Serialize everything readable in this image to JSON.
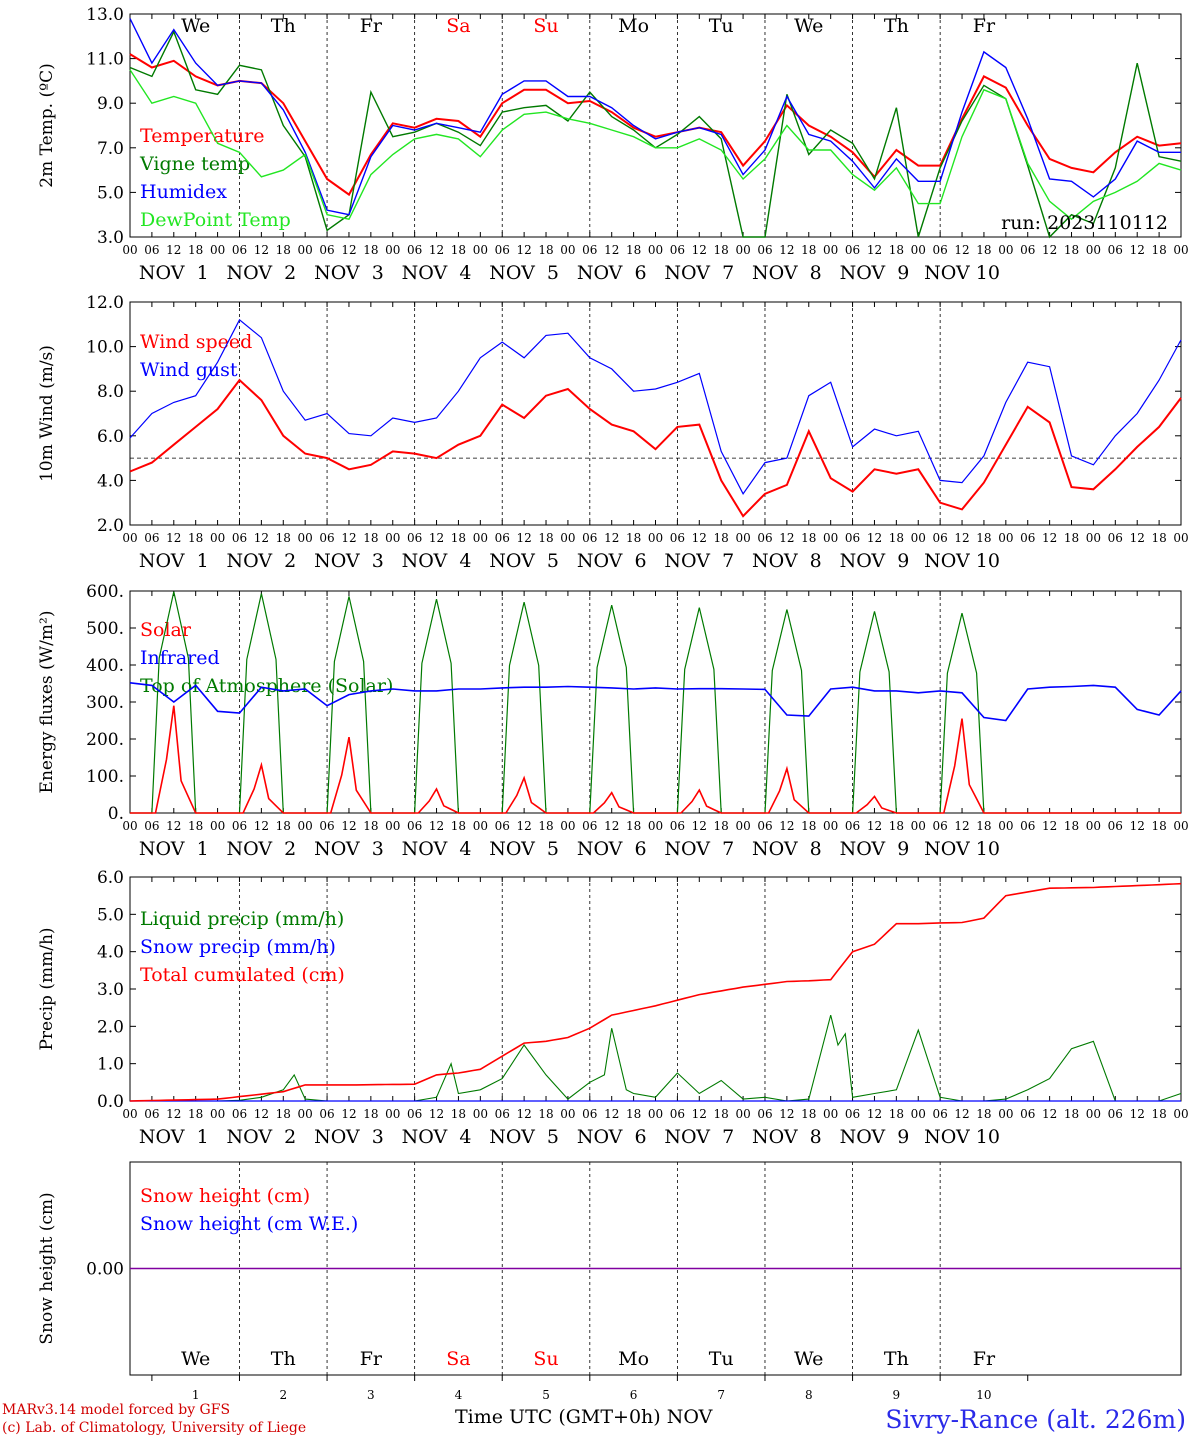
{
  "run_label": "run: 2023110112",
  "footer": {
    "model_line": "MARv3.14 model forced by GFS",
    "lab_line": "(c) Lab. of Climatology, University of Liege",
    "x_title": "Time UTC (GMT+0h) NOV",
    "station": "Sivry-Rance (alt. 226m)"
  },
  "day_names": [
    "We",
    "Th",
    "Fr",
    "Sa",
    "Su",
    "Mo",
    "Tu",
    "We",
    "Th",
    "Fr"
  ],
  "weekend_days": [
    "Sa",
    "Su"
  ],
  "day_dates": [
    "NOV  1",
    "NOV  2",
    "NOV  3",
    "NOV  4",
    "NOV  5",
    "NOV  6",
    "NOV  7",
    "NOV  8",
    "NOV  9",
    "NOV 10"
  ],
  "day_numbers": [
    "1",
    "2",
    "3",
    "4",
    "5",
    "6",
    "7",
    "8",
    "9",
    "10"
  ],
  "hour_ticks": [
    "00",
    "06",
    "12",
    "18"
  ],
  "colors": {
    "red": "#ff0000",
    "green": "#007a00",
    "blue": "#0000ff",
    "lightgreen": "#22e622",
    "purple": "#8000a0"
  },
  "chart_data": [
    {
      "type": "line",
      "ylabel": "2m Temp. (ºC)",
      "ylim": [
        3,
        13
      ],
      "yticks": [
        3,
        5,
        7,
        9,
        11,
        13
      ],
      "tick_labels": [
        "3.0",
        "5.0",
        "7.0",
        "9.0",
        "11.0",
        "13.0"
      ],
      "x": [
        0,
        6,
        12,
        18,
        24,
        30,
        36,
        42,
        48,
        54,
        60,
        66,
        72,
        78,
        84,
        90,
        96,
        102,
        108,
        114,
        120,
        126,
        132,
        138,
        144,
        150,
        156,
        162,
        168,
        174,
        180,
        186,
        192,
        198,
        204,
        210,
        216,
        222,
        228,
        234,
        240
      ],
      "series": [
        {
          "name": "Temperature",
          "color": "red",
          "values": [
            11.2,
            10.6,
            10.9,
            10.2,
            9.8,
            10.0,
            9.9,
            9.0,
            7.3,
            5.6,
            4.9,
            6.7,
            8.1,
            7.9,
            8.3,
            8.2,
            7.5,
            9.0,
            9.6,
            9.6,
            9.0,
            9.1,
            8.6,
            7.9,
            7.5,
            7.7,
            7.9,
            7.7,
            6.2,
            7.3,
            8.9,
            8.0,
            7.5,
            6.8,
            5.7,
            6.9,
            6.2,
            6.2,
            8.3,
            10.2,
            9.7
          ]
        },
        {
          "name": "Vigne temp",
          "color": "green",
          "values": [
            10.6,
            10.2,
            12.2,
            9.6,
            9.4,
            10.7,
            10.5,
            8.0,
            6.6,
            3.3,
            4.0,
            9.5,
            7.5,
            7.7,
            8.1,
            7.7,
            7.1,
            8.6,
            8.8,
            8.9,
            8.2,
            9.5,
            8.4,
            7.8,
            7.0,
            7.6,
            8.4,
            7.4,
            2.9,
            2.9,
            9.4,
            6.7,
            7.8,
            7.2,
            5.6,
            8.8,
            2.9,
            6.1,
            8.2,
            9.8,
            9.2
          ]
        },
        {
          "name": "Humidex",
          "color": "blue",
          "values": [
            12.8,
            10.8,
            12.3,
            10.8,
            9.8,
            10.0,
            9.9,
            8.7,
            6.8,
            4.2,
            4.0,
            6.6,
            8.0,
            7.8,
            8.1,
            7.9,
            7.7,
            9.4,
            10.0,
            10.0,
            9.3,
            9.3,
            8.8,
            8.0,
            7.4,
            7.7,
            7.9,
            7.6,
            5.8,
            6.9,
            9.3,
            7.6,
            7.3,
            6.4,
            5.2,
            6.5,
            5.5,
            5.5,
            8.6,
            11.3,
            10.6
          ]
        },
        {
          "name": "DewPoint Temp",
          "color": "lightgreen",
          "values": [
            10.5,
            9.0,
            9.3,
            9.0,
            7.2,
            6.8,
            5.7,
            6.0,
            6.7,
            4.0,
            3.8,
            5.8,
            6.7,
            7.4,
            7.6,
            7.4,
            6.6,
            7.8,
            8.5,
            8.6,
            8.3,
            8.1,
            7.8,
            7.5,
            7.0,
            7.0,
            7.4,
            6.9,
            5.6,
            6.5,
            8.0,
            6.9,
            6.9,
            5.8,
            5.1,
            6.1,
            4.5,
            4.5,
            7.5,
            9.6,
            9.2
          ]
        }
      ],
      "series_extra": {
        "x": [
          240,
          246,
          252,
          258,
          264,
          270,
          276,
          282,
          288
        ],
        "Temperature": [
          9.7,
          8.0,
          6.5,
          6.1,
          5.9,
          6.8,
          7.5,
          7.1,
          7.2
        ],
        "Vigne temp": [
          9.2,
          6.2,
          3.0,
          4.0,
          3.6,
          6.1,
          10.8,
          6.6,
          6.4
        ],
        "Humidex": [
          10.6,
          8.3,
          5.6,
          5.5,
          4.8,
          5.6,
          7.3,
          6.8,
          6.8
        ],
        "DewPoint Temp": [
          9.2,
          6.3,
          4.6,
          3.8,
          4.6,
          5.0,
          5.5,
          6.3,
          6.0
        ]
      }
    },
    {
      "type": "line",
      "ylabel": "10m Wind (m/s)",
      "ylim": [
        2,
        12
      ],
      "yticks": [
        2,
        4,
        6,
        8,
        10,
        12
      ],
      "tick_labels": [
        "2.0",
        "4.0",
        "6.0",
        "8.0",
        "10.0",
        "12.0"
      ],
      "reference_line": 5,
      "x": [
        0,
        6,
        12,
        18,
        24,
        30,
        36,
        42,
        48,
        54,
        60,
        66,
        72,
        78,
        84,
        90,
        96,
        102,
        108,
        114,
        120,
        126,
        132,
        138,
        144,
        150,
        156,
        162,
        168,
        174,
        180,
        186,
        192,
        198,
        204,
        210,
        216,
        222,
        228,
        234,
        240,
        246,
        252,
        258,
        264,
        270,
        276,
        282,
        288
      ],
      "series": [
        {
          "name": "Wind speed",
          "color": "red",
          "values": [
            4.4,
            4.8,
            5.6,
            6.4,
            7.2,
            8.5,
            7.6,
            6.0,
            5.2,
            5.0,
            4.5,
            4.7,
            5.3,
            5.2,
            5.0,
            5.6,
            6.0,
            7.4,
            6.8,
            7.8,
            8.1,
            7.2,
            6.5,
            6.2,
            5.4,
            6.4,
            6.5,
            4.0,
            2.4,
            3.4,
            3.8,
            6.2,
            4.1,
            3.5,
            4.5,
            4.3,
            4.5,
            3.0,
            2.7,
            3.9,
            5.6,
            7.3,
            6.6,
            3.7,
            3.6,
            4.5,
            5.5,
            6.4,
            7.7
          ]
        },
        {
          "name": "Wind gust",
          "color": "blue",
          "values": [
            5.9,
            7.0,
            7.5,
            7.8,
            9.3,
            11.2,
            10.4,
            8.0,
            6.7,
            7.0,
            6.1,
            6.0,
            6.8,
            6.6,
            6.8,
            8.0,
            9.5,
            10.2,
            9.5,
            10.5,
            10.6,
            9.5,
            9.0,
            8.0,
            8.1,
            8.4,
            8.8,
            5.3,
            3.4,
            4.8,
            5.0,
            7.8,
            8.4,
            5.5,
            6.3,
            6.0,
            6.2,
            4.0,
            3.9,
            5.1,
            7.5,
            9.3,
            9.1,
            5.1,
            4.7,
            6.0,
            7.0,
            8.5,
            10.3
          ]
        }
      ]
    },
    {
      "type": "line",
      "ylabel": "Energy fluxes (W/m²)",
      "ylim": [
        0,
        600
      ],
      "yticks": [
        0,
        100,
        200,
        300,
        400,
        500,
        600
      ],
      "tick_labels": [
        "0.",
        "100.",
        "200.",
        "300.",
        "400.",
        "500.",
        "600."
      ],
      "series": [
        {
          "name": "Solar",
          "color": "red",
          "daily_peaks": [
            290,
            130,
            205,
            65,
            95,
            55,
            62,
            120,
            45,
            255
          ]
        },
        {
          "name": "Infrared",
          "color": "blue",
          "x": [
            0,
            6,
            12,
            18,
            24,
            30,
            36,
            42,
            48,
            54,
            60,
            66,
            72,
            78,
            84,
            90,
            96,
            102,
            108,
            114,
            120,
            126,
            132,
            138,
            144,
            150,
            156,
            162,
            168,
            174,
            180,
            186,
            192,
            198,
            204,
            210,
            216,
            222,
            228,
            234,
            240,
            246,
            252,
            258,
            264,
            270,
            276,
            282,
            288
          ],
          "values": [
            352,
            345,
            300,
            345,
            275,
            270,
            340,
            330,
            335,
            290,
            320,
            330,
            335,
            330,
            330,
            335,
            335,
            338,
            340,
            340,
            342,
            340,
            338,
            335,
            338,
            335,
            336,
            336,
            335,
            334,
            265,
            262,
            335,
            340,
            330,
            330,
            325,
            330,
            325,
            258,
            250,
            335,
            340,
            342,
            345,
            340,
            280,
            265,
            330
          ]
        },
        {
          "name": "Top of Atmosphere (Solar)",
          "color": "green",
          "daily_peaks": [
            598,
            593,
            585,
            578,
            570,
            562,
            555,
            550,
            545,
            540
          ]
        }
      ]
    },
    {
      "type": "line",
      "ylabel": "Precip (mm/h)",
      "ylim": [
        0,
        6
      ],
      "yticks": [
        0,
        1,
        2,
        3,
        4,
        5,
        6
      ],
      "tick_labels": [
        "0.0",
        "1.0",
        "2.0",
        "3.0",
        "4.0",
        "5.0",
        "6.0"
      ],
      "series": [
        {
          "name": "Liquid precip (mm/h)",
          "color": "green",
          "x": [
            0,
            6,
            12,
            18,
            24,
            30,
            36,
            42,
            45,
            48,
            54,
            60,
            66,
            72,
            78,
            84,
            88,
            90,
            96,
            102,
            108,
            114,
            120,
            126,
            130,
            132,
            136,
            138,
            144,
            150,
            156,
            162,
            168,
            174,
            180,
            186,
            192,
            194,
            196,
            198,
            204,
            210,
            216,
            222,
            228,
            234,
            240,
            246,
            252,
            258,
            264,
            270,
            276,
            282,
            288
          ],
          "values": [
            0,
            0,
            0,
            0,
            0,
            0.02,
            0.1,
            0.3,
            0.7,
            0.05,
            0,
            0,
            0,
            0,
            0,
            0.1,
            1.0,
            0.2,
            0.3,
            0.6,
            1.5,
            0.7,
            0.05,
            0.5,
            0.7,
            1.95,
            0.3,
            0.2,
            0.1,
            0.75,
            0.2,
            0.55,
            0.05,
            0.1,
            0,
            0.05,
            2.3,
            1.5,
            1.8,
            0.1,
            0.2,
            0.3,
            1.9,
            0.1,
            0,
            0,
            0.05,
            0.3,
            0.6,
            1.4,
            1.6,
            0,
            0,
            0,
            0.2
          ]
        },
        {
          "name": "Snow precip (mm/h)",
          "color": "blue",
          "x": [
            0,
            288
          ],
          "values": [
            0,
            0
          ]
        },
        {
          "name": "Total cumulated (cm)",
          "color": "red",
          "x": [
            0,
            24,
            42,
            48,
            60,
            78,
            84,
            90,
            96,
            108,
            114,
            120,
            126,
            132,
            144,
            156,
            168,
            180,
            186,
            192,
            198,
            204,
            210,
            216,
            222,
            228,
            234,
            240,
            252,
            264,
            288
          ],
          "values": [
            0,
            0.05,
            0.25,
            0.43,
            0.43,
            0.45,
            0.7,
            0.75,
            0.85,
            1.55,
            1.6,
            1.7,
            1.95,
            2.3,
            2.55,
            2.85,
            3.05,
            3.2,
            3.22,
            3.25,
            4.0,
            4.2,
            4.75,
            4.75,
            4.77,
            4.78,
            4.9,
            5.5,
            5.7,
            5.72,
            5.82
          ]
        }
      ]
    },
    {
      "type": "line",
      "ylabel": "Snow height (cm)",
      "ylim": [
        -1,
        1
      ],
      "yticks": [
        0
      ],
      "tick_labels": [
        "0.00"
      ],
      "series": [
        {
          "name": "Snow height (cm)",
          "color": "red",
          "x": [
            0,
            288
          ],
          "values": [
            0,
            0
          ]
        },
        {
          "name": "Snow height (cm W.E.)",
          "color": "blue",
          "x": [
            0,
            288
          ],
          "values": [
            0,
            0
          ]
        }
      ]
    }
  ]
}
